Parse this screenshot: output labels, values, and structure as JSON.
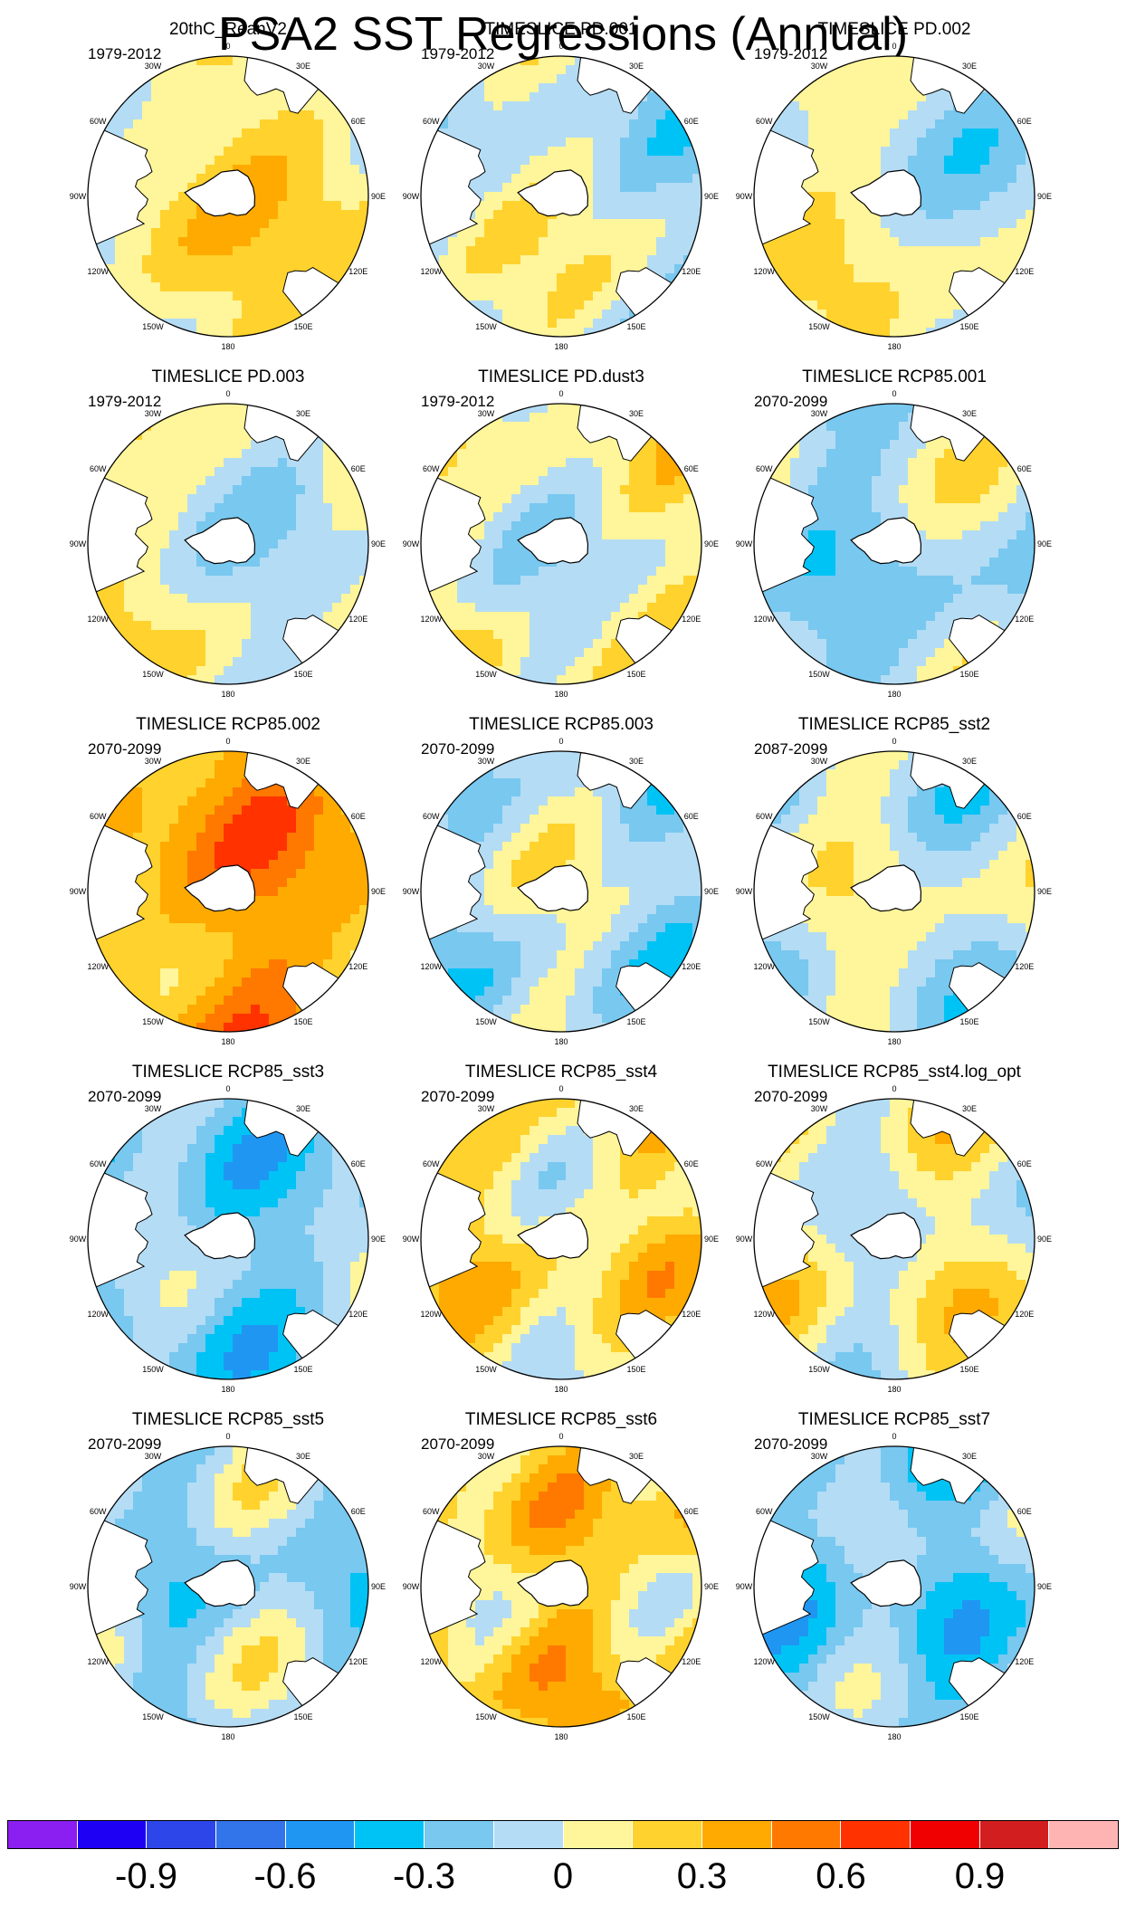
{
  "chart_data": {
    "type": "heatmap",
    "title": "PSA2 SST Regressions (Annual)",
    "projection": "south-polar-stereographic",
    "longitude_labels": [
      "0",
      "30E",
      "60E",
      "90E",
      "120E",
      "150E",
      "180",
      "150W",
      "120W",
      "90W",
      "60W",
      "30W"
    ],
    "panels": [
      {
        "title": "20thC_ReanV2",
        "period": "1979-2012",
        "base": 0.1,
        "pattern": 1
      },
      {
        "title": "TIMESLICE PD.001",
        "period": "1979-2012",
        "base": -0.05,
        "pattern": 2
      },
      {
        "title": "TIMESLICE PD.002",
        "period": "1979-2012",
        "base": 0.0,
        "pattern": 3
      },
      {
        "title": "TIMESLICE PD.003",
        "period": "1979-2012",
        "base": 0.02,
        "pattern": 4
      },
      {
        "title": "TIMESLICE PD.dust3",
        "period": "1979-2012",
        "base": 0.05,
        "pattern": 5
      },
      {
        "title": "TIMESLICE RCP85.001",
        "period": "2070-2099",
        "base": -0.1,
        "pattern": 6
      },
      {
        "title": "TIMESLICE RCP85.002",
        "period": "2070-2099",
        "base": 0.38,
        "pattern": 7
      },
      {
        "title": "TIMESLICE RCP85.003",
        "period": "2070-2099",
        "base": -0.08,
        "pattern": 8
      },
      {
        "title": "TIMESLICE RCP85_sst2",
        "period": "2087-2099",
        "base": -0.03,
        "pattern": 9
      },
      {
        "title": "TIMESLICE RCP85_sst3",
        "period": "2070-2099",
        "base": -0.2,
        "pattern": 10
      },
      {
        "title": "TIMESLICE RCP85_sst4",
        "period": "2070-2099",
        "base": 0.15,
        "pattern": 11
      },
      {
        "title": "TIMESLICE RCP85_sst4.log_opt",
        "period": "2070-2099",
        "base": 0.05,
        "pattern": 12
      },
      {
        "title": "TIMESLICE RCP85_sst5",
        "period": "2070-2099",
        "base": -0.12,
        "pattern": 13
      },
      {
        "title": "TIMESLICE RCP85_sst6",
        "period": "2070-2099",
        "base": 0.22,
        "pattern": 14
      },
      {
        "title": "TIMESLICE RCP85_sst7",
        "period": "2070-2099",
        "base": -0.22,
        "pattern": 15
      }
    ],
    "colorbar": {
      "levels": [
        -1.05,
        -0.9,
        -0.75,
        -0.6,
        -0.45,
        -0.3,
        -0.15,
        0,
        0.15,
        0.3,
        0.45,
        0.6,
        0.75,
        0.9,
        1.05
      ],
      "colors": [
        "#8b1ef0",
        "#1e00f5",
        "#2d46ea",
        "#3274ea",
        "#2096f3",
        "#00c3f5",
        "#78c8f0",
        "#b4dcf5",
        "#fff59a",
        "#ffd22d",
        "#ffaa00",
        "#ff7800",
        "#ff3200",
        "#f00000",
        "#d21e1e",
        "#ffb4b4"
      ],
      "tick_labels": [
        "-0.9",
        "-0.6",
        "-0.3",
        "0",
        "0.3",
        "0.6",
        "0.9"
      ]
    }
  },
  "land_color": "#ffffff",
  "coast_color": "#000000"
}
